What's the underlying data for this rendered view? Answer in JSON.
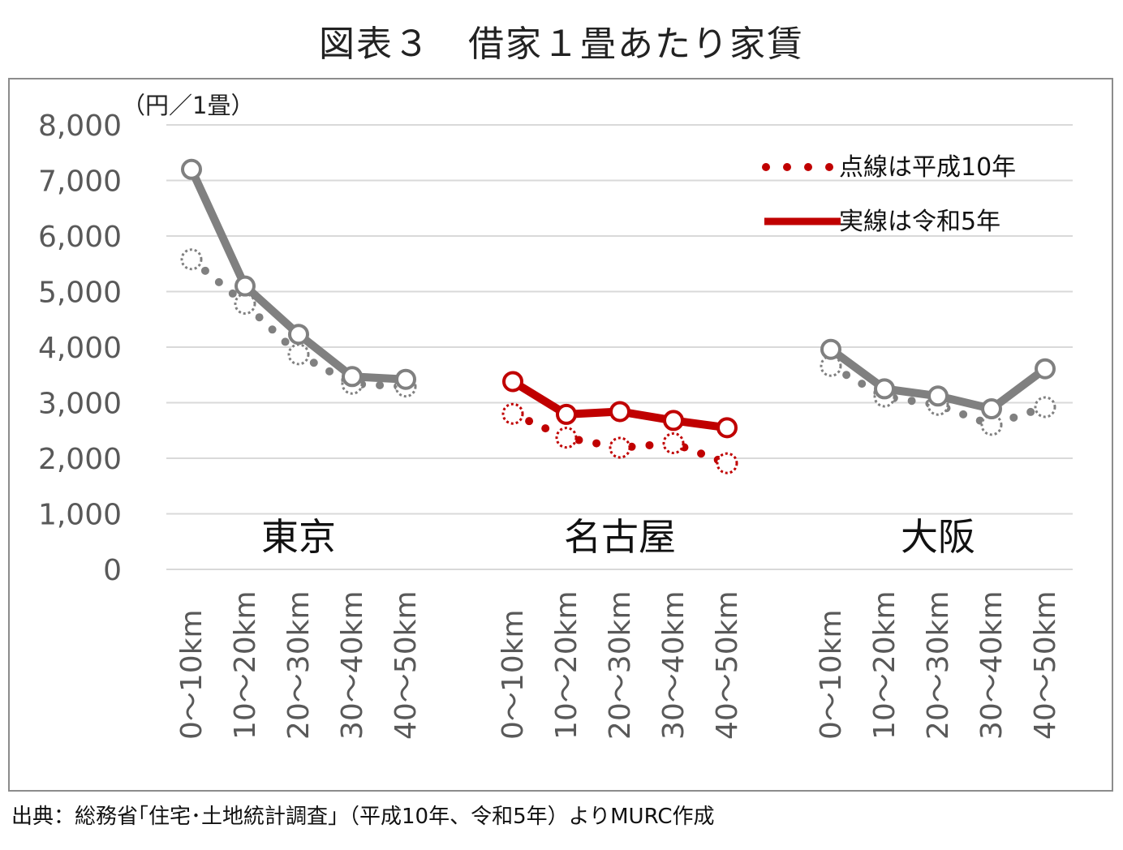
{
  "title": "図表３　借家１畳あたり家賃",
  "source": "出典：総務省｢住宅･土地統計調査｣（平成10年、令和5年）よりMURC作成",
  "chart_data": {
    "type": "line",
    "unit_label": "（円／1畳）",
    "ylim": [
      0,
      8000
    ],
    "yticks": [
      "0",
      "1,000",
      "2,000",
      "3,000",
      "4,000",
      "5,000",
      "6,000",
      "7,000",
      "8,000"
    ],
    "grid": true,
    "legend_position": "top-right",
    "legend": {
      "dotted_label": "点線は平成10年",
      "solid_label": "実線は令和5年"
    },
    "colors": {
      "highlight": "#C00000",
      "other": "#808080"
    },
    "groups": [
      {
        "name": "東京",
        "highlight": false,
        "categories": [
          "0～10km",
          "10～20km",
          "20～30km",
          "30～40km",
          "40～50km"
        ],
        "series": [
          {
            "label": "令和5年",
            "style": "solid",
            "values": [
              7200,
              5100,
              4230,
              3470,
              3420
            ]
          },
          {
            "label": "平成10年",
            "style": "dotted",
            "values": [
              5580,
              4780,
              3870,
              3340,
              3290
            ]
          }
        ]
      },
      {
        "name": "名古屋",
        "highlight": true,
        "categories": [
          "0～10km",
          "10～20km",
          "20～30km",
          "30～40km",
          "40～50km"
        ],
        "series": [
          {
            "label": "令和5年",
            "style": "solid",
            "values": [
              3380,
              2790,
              2840,
              2680,
              2550
            ]
          },
          {
            "label": "平成10年",
            "style": "dotted",
            "values": [
              2800,
              2370,
              2190,
              2270,
              1910
            ]
          }
        ]
      },
      {
        "name": "大阪",
        "highlight": false,
        "categories": [
          "0～10km",
          "10～20km",
          "20～30km",
          "30～40km",
          "40～50km"
        ],
        "series": [
          {
            "label": "令和5年",
            "style": "solid",
            "values": [
              3960,
              3250,
              3120,
              2890,
              3610
            ]
          },
          {
            "label": "平成10年",
            "style": "dotted",
            "values": [
              3660,
              3110,
              2960,
              2600,
              2920
            ]
          }
        ]
      }
    ]
  }
}
